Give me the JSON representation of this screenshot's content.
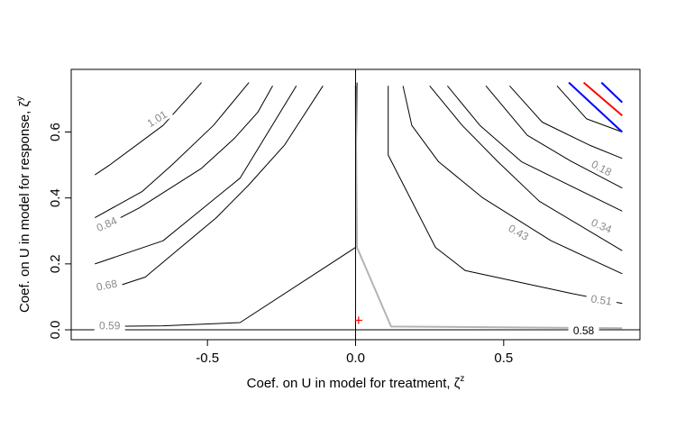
{
  "chart_data": {
    "type": "line",
    "title": "",
    "xlabel": "Coef. on U in model for treatment, ζ",
    "xlabel_sup": "z",
    "ylabel": "Coef. on U in model for response, ζ",
    "ylabel_sup": "y",
    "xlim": [
      -0.96,
      0.96
    ],
    "ylim": [
      -0.03,
      0.79
    ],
    "x_ticks": [
      {
        "value": -0.5,
        "label": "-0.5"
      },
      {
        "value": 0.0,
        "label": "0.0"
      },
      {
        "value": 0.5,
        "label": "0.5"
      }
    ],
    "y_ticks": [
      {
        "value": 0.0,
        "label": "0.0"
      },
      {
        "value": 0.2,
        "label": "0.2"
      },
      {
        "value": 0.4,
        "label": "0.4"
      },
      {
        "value": 0.6,
        "label": "0.6"
      }
    ],
    "grid": false,
    "reference_lines": {
      "vertical_x": 0.0,
      "horizontal_y": 0.0
    },
    "series": [
      {
        "label": "0.59",
        "color": "#000000",
        "label_color": "#8a8a8a",
        "points": [
          [
            -0.88,
            0.01
          ],
          [
            -0.65,
            0.012
          ],
          [
            -0.39,
            0.022
          ],
          [
            0.0,
            0.25
          ],
          [
            0.005,
            0.75
          ]
        ]
      },
      {
        "label": "0.68",
        "color": "#000000",
        "label_color": "#8a8a8a",
        "points": [
          [
            -0.88,
            0.2
          ],
          [
            -0.65,
            0.27
          ],
          [
            -0.39,
            0.46
          ],
          [
            -0.2,
            0.74
          ]
        ]
      },
      {
        "label": "0.84",
        "color": "#000000",
        "label_color": "#8a8a8a",
        "points": [
          [
            -0.88,
            0.34
          ],
          [
            -0.72,
            0.42
          ],
          [
            -0.62,
            0.5
          ],
          [
            -0.48,
            0.62
          ],
          [
            -0.36,
            0.75
          ]
        ]
      },
      {
        "label": "1.01",
        "color": "#000000",
        "label_color": "#8a8a8a",
        "points": [
          [
            -0.88,
            0.47
          ],
          [
            -0.83,
            0.5
          ],
          [
            -0.65,
            0.62
          ],
          [
            -0.52,
            0.75
          ]
        ]
      },
      {
        "label": "",
        "color": "#000000",
        "label_color": "#8a8a8a",
        "points": [
          [
            -0.88,
            0.3
          ],
          [
            -0.73,
            0.37
          ],
          [
            -0.52,
            0.49
          ],
          [
            -0.41,
            0.58
          ],
          [
            -0.33,
            0.66
          ],
          [
            -0.28,
            0.74
          ]
        ]
      },
      {
        "label": "",
        "color": "#000000",
        "label_color": "#8a8a8a",
        "points": [
          [
            -0.88,
            0.11
          ],
          [
            -0.71,
            0.16
          ],
          [
            -0.47,
            0.34
          ],
          [
            -0.36,
            0.44
          ],
          [
            -0.24,
            0.56
          ],
          [
            -0.11,
            0.74
          ]
        ]
      },
      {
        "label": "0.51",
        "color": "#000000",
        "label_color": "#8a8a8a",
        "points": [
          [
            0.9,
            0.08
          ],
          [
            0.73,
            0.11
          ],
          [
            0.37,
            0.18
          ],
          [
            0.27,
            0.25
          ],
          [
            0.11,
            0.53
          ],
          [
            0.11,
            0.74
          ]
        ]
      },
      {
        "label": "0.43",
        "color": "#000000",
        "label_color": "#8a8a8a",
        "points": [
          [
            0.9,
            0.17
          ],
          [
            0.66,
            0.27
          ],
          [
            0.43,
            0.4
          ],
          [
            0.28,
            0.51
          ],
          [
            0.19,
            0.62
          ],
          [
            0.16,
            0.74
          ]
        ]
      },
      {
        "label": "0.34",
        "color": "#000000",
        "label_color": "#8a8a8a",
        "points": [
          [
            0.9,
            0.36
          ],
          [
            0.56,
            0.51
          ],
          [
            0.42,
            0.62
          ],
          [
            0.31,
            0.74
          ]
        ]
      },
      {
        "label": "0.18",
        "color": "#000000",
        "label_color": "#8a8a8a",
        "points": [
          [
            0.9,
            0.52
          ],
          [
            0.79,
            0.56
          ],
          [
            0.63,
            0.63
          ],
          [
            0.52,
            0.74
          ]
        ]
      },
      {
        "label": "",
        "color": "#000000",
        "label_color": "#8a8a8a",
        "points": [
          [
            0.9,
            0.24
          ],
          [
            0.62,
            0.39
          ],
          [
            0.48,
            0.51
          ],
          [
            0.36,
            0.62
          ],
          [
            0.25,
            0.74
          ]
        ]
      },
      {
        "label": "",
        "color": "#000000",
        "label_color": "#8a8a8a",
        "points": [
          [
            0.9,
            0.43
          ],
          [
            0.73,
            0.51
          ],
          [
            0.58,
            0.59
          ],
          [
            0.44,
            0.74
          ]
        ]
      },
      {
        "label": "",
        "color": "#000000",
        "label_color": "#8a8a8a",
        "points": [
          [
            0.9,
            0.6
          ],
          [
            0.78,
            0.64
          ],
          [
            0.68,
            0.74
          ]
        ]
      },
      {
        "label": "",
        "color": "#0000ff",
        "label_color": "#8a8a8a",
        "points": [
          [
            0.9,
            0.6
          ],
          [
            0.72,
            0.75
          ]
        ]
      },
      {
        "label": "",
        "color": "#ff0000",
        "label_color": "#8a8a8a",
        "points": [
          [
            0.9,
            0.65
          ],
          [
            0.77,
            0.75
          ]
        ]
      },
      {
        "label": "",
        "color": "#0000ff",
        "label_color": "#8a8a8a",
        "points": [
          [
            0.9,
            0.69
          ],
          [
            0.83,
            0.75
          ]
        ]
      },
      {
        "label": "",
        "color": "#b3b3b3",
        "label_color": "#8a8a8a",
        "width": 2,
        "points": [
          [
            0.0,
            0.74
          ],
          [
            0.005,
            0.25
          ],
          [
            0.12,
            0.01
          ],
          [
            0.9,
            0.005
          ]
        ]
      }
    ],
    "contour_labels": [
      {
        "text": "1.01",
        "x": -0.67,
        "y": 0.64,
        "color": "#8a8a8a",
        "angle": -32
      },
      {
        "text": "0.84",
        "x": -0.84,
        "y": 0.32,
        "color": "#8a8a8a",
        "angle": -24
      },
      {
        "text": "0.68",
        "x": -0.84,
        "y": 0.135,
        "color": "#8a8a8a",
        "angle": -11
      },
      {
        "text": "0.59",
        "x": -0.83,
        "y": 0.012,
        "color": "#8a8a8a",
        "angle": 0
      },
      {
        "text": "0.18",
        "x": 0.83,
        "y": 0.49,
        "color": "#8a8a8a",
        "angle": 28
      },
      {
        "text": "0.34",
        "x": 0.83,
        "y": 0.315,
        "color": "#8a8a8a",
        "angle": 23
      },
      {
        "text": "0.43",
        "x": 0.55,
        "y": 0.295,
        "color": "#8a8a8a",
        "angle": 30
      },
      {
        "text": "0.51",
        "x": 0.83,
        "y": 0.09,
        "color": "#8a8a8a",
        "angle": 8
      },
      {
        "text": "0.58",
        "x": 0.77,
        "y": -0.002,
        "color": "#000000",
        "angle": 0
      }
    ],
    "point_marker": {
      "x": 0.01,
      "y": 0.03,
      "color": "#ff0000",
      "symbol": "+"
    }
  }
}
